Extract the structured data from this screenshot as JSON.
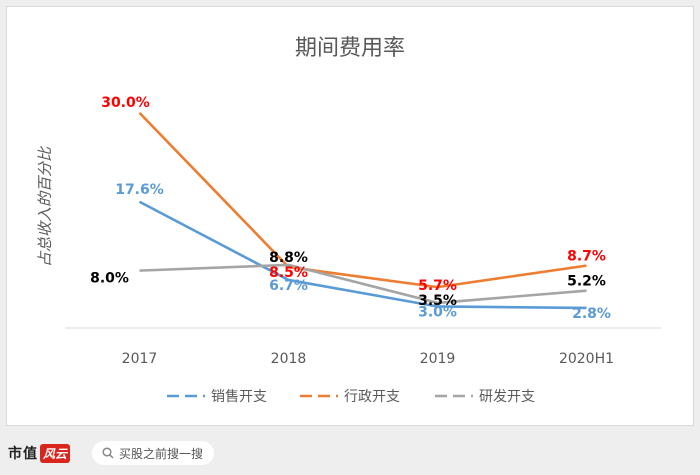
{
  "chart_data": {
    "type": "line",
    "title": "期间费用率",
    "ylabel": "占总收入的百分比",
    "xlabel": "",
    "categories": [
      "2017",
      "2018",
      "2019",
      "2020H1"
    ],
    "ylim": [
      0,
      35
    ],
    "grid": false,
    "legend_position": "bottom",
    "series": [
      {
        "name": "销售开支",
        "color": "#5b9bd5",
        "label_color": "#5b9bd5",
        "values": [
          17.6,
          6.7,
          3.0,
          2.8
        ],
        "labels": [
          "17.6%",
          "6.7%",
          "3.0%",
          "2.8%"
        ]
      },
      {
        "name": "行政开支",
        "color": "#ed7d31",
        "label_color": "#ff0000",
        "values": [
          30.0,
          8.5,
          5.7,
          8.7
        ],
        "labels": [
          "30.0%",
          "8.5%",
          "5.7%",
          "8.7%"
        ]
      },
      {
        "name": "研发开支",
        "color": "#a5a5a5",
        "label_color": "#000000",
        "values": [
          8.0,
          8.8,
          3.5,
          5.2
        ],
        "labels": [
          "8.0%",
          "8.8%",
          "3.5%",
          "5.2%"
        ]
      }
    ]
  },
  "footer": {
    "brand_name": "市值",
    "brand_seal": "风云",
    "search_icon": "search-icon",
    "search_text": "买股之前搜一搜"
  }
}
